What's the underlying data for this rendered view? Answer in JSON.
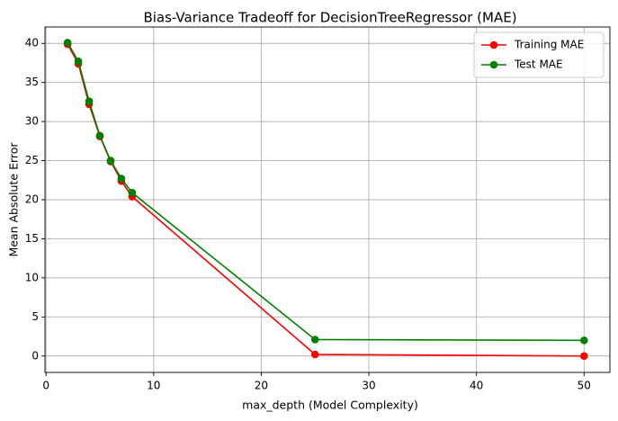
{
  "chart_data": {
    "type": "line",
    "title": "Bias-Variance Tradeoff for DecisionTreeRegressor (MAE)",
    "xlabel": "max_depth (Model Complexity)",
    "ylabel": "Mean Absolute Error",
    "xlim": [
      -0.1,
      52.4
    ],
    "ylim": [
      -2.1,
      42.1
    ],
    "xticks": [
      0,
      10,
      20,
      30,
      40,
      50
    ],
    "yticks": [
      0,
      5,
      10,
      15,
      20,
      25,
      30,
      35,
      40
    ],
    "grid": true,
    "legend_position": "upper-right",
    "x": [
      2,
      3,
      4,
      5,
      6,
      7,
      8,
      25,
      50
    ],
    "series": [
      {
        "name": "Training MAE",
        "color": "#ff0000",
        "marker": "circle",
        "values": [
          39.9,
          37.4,
          32.2,
          28.1,
          24.9,
          22.4,
          20.4,
          0.2,
          0.0
        ]
      },
      {
        "name": "Test MAE",
        "color": "#008000",
        "marker": "circle",
        "values": [
          40.1,
          37.7,
          32.6,
          28.2,
          25.0,
          22.7,
          20.9,
          2.1,
          2.0
        ]
      }
    ]
  }
}
